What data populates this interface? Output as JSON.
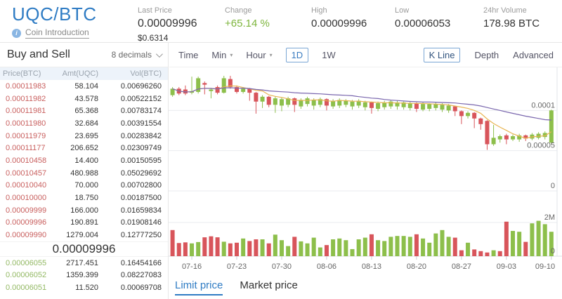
{
  "colors": {
    "accent_blue": "#2f7cc4",
    "change_green": "#7db53c",
    "ask_red": "#c9605f",
    "bid_green": "#93b964",
    "up_green": "#8dbf4b",
    "down_red": "#d8555b",
    "ma_fast_yellow": "#e8b552",
    "ma_slow_purple": "#7a67ae"
  },
  "header": {
    "pair": "UQC/BTC",
    "info_icon_glyph": "i",
    "coin_intro": "Coin Introduction",
    "last_price": {
      "label": "Last Price",
      "value": "0.00009996",
      "usd": "$0.6314"
    },
    "change": {
      "label": "Change",
      "value": "+65.14 %"
    },
    "high": {
      "label": "High",
      "value": "0.00009996"
    },
    "low": {
      "label": "Low",
      "value": "0.00006053"
    },
    "volume": {
      "label": "24hr Volume",
      "value": "178.98 BTC"
    }
  },
  "orderbook": {
    "title": "Buy and Sell",
    "decimals": "8 decimals",
    "columns": [
      "Price(BTC)",
      "Amt(UQC)",
      "Vol(BTC)"
    ],
    "asks": [
      [
        "0.00011983",
        "58.104",
        "0.00696260"
      ],
      [
        "0.00011982",
        "43.578",
        "0.00522152"
      ],
      [
        "0.00011981",
        "65.368",
        "0.00783174"
      ],
      [
        "0.00011980",
        "32.684",
        "0.00391554"
      ],
      [
        "0.00011979",
        "23.695",
        "0.00283842"
      ],
      [
        "0.00011177",
        "206.652",
        "0.02309749"
      ],
      [
        "0.00010458",
        "14.400",
        "0.00150595"
      ],
      [
        "0.00010457",
        "480.988",
        "0.05029692"
      ],
      [
        "0.00010040",
        "70.000",
        "0.00702800"
      ],
      [
        "0.00010000",
        "18.750",
        "0.00187500"
      ],
      [
        "0.00009999",
        "166.000",
        "0.01659834"
      ],
      [
        "0.00009996",
        "190.891",
        "0.01908146"
      ],
      [
        "0.00009990",
        "1279.004",
        "0.12777250"
      ]
    ],
    "current_price": "0.00009996",
    "bids": [
      [
        "0.00006055",
        "2717.451",
        "0.16454166"
      ],
      [
        "0.00006052",
        "1359.399",
        "0.08227083"
      ],
      [
        "0.00006051",
        "11.520",
        "0.00069708"
      ]
    ]
  },
  "toolbar": {
    "time": "Time",
    "min": "Min",
    "hour": "Hour",
    "d1": "1D",
    "w1": "1W",
    "selected_interval": "1D",
    "kline": "K Line",
    "depth": "Depth",
    "advanced": "Advanced",
    "selected_view": "K Line"
  },
  "tabs": {
    "limit": "Limit price",
    "market": "Market price",
    "active": "Limit price"
  },
  "chart_data": {
    "type": "candlestick_with_volume",
    "title": "UQC/BTC daily K-line",
    "price_unit_multiplier": 1e-05,
    "volume_unit": "millions",
    "x_ticks": [
      [
        3,
        "07-16"
      ],
      [
        10,
        "07-23"
      ],
      [
        17,
        "07-30"
      ],
      [
        24,
        "08-06"
      ],
      [
        31,
        "08-13"
      ],
      [
        38,
        "08-20"
      ],
      [
        45,
        "08-27"
      ],
      [
        52,
        "09-03"
      ],
      [
        59,
        "09-10"
      ]
    ],
    "price_axis_ticks": [
      {
        "label": "0.0001",
        "value": 10
      },
      {
        "label": "0.00005",
        "value": 5
      },
      {
        "label": "0",
        "value": 0
      }
    ],
    "volume_axis_ticks": [
      {
        "label": "2M",
        "value": 2
      },
      {
        "label": "0",
        "value": 0
      }
    ],
    "ylim_price_units": [
      0,
      15
    ],
    "ylim_volume_m": [
      0,
      2.8
    ],
    "ma_fast_window": 7,
    "ma_slow_window": 25,
    "legend_position": "none",
    "grid": true,
    "candles_format": [
      "date",
      "open",
      "high",
      "low",
      "close",
      "volume_m"
    ],
    "candles": [
      [
        "07-13",
        11.9,
        12.9,
        11.7,
        12.7,
        1.55
      ],
      [
        "07-14",
        12.7,
        12.9,
        11.9,
        12.1,
        0.78
      ],
      [
        "07-15",
        12.6,
        13.1,
        11.9,
        12.1,
        0.82
      ],
      [
        "07-16",
        12.2,
        14.2,
        12.0,
        12.4,
        0.76
      ],
      [
        "07-17",
        12.3,
        14.2,
        12.1,
        14.0,
        0.84
      ],
      [
        "07-18",
        13.4,
        13.6,
        12.0,
        13.2,
        1.12
      ],
      [
        "07-19",
        12.4,
        12.8,
        11.5,
        12.6,
        1.18
      ],
      [
        "07-20",
        12.9,
        13.1,
        12.0,
        12.2,
        1.12
      ],
      [
        "07-21",
        12.2,
        14.3,
        12.1,
        14.0,
        0.86
      ],
      [
        "07-22",
        13.9,
        14.3,
        12.7,
        12.9,
        0.76
      ],
      [
        "07-23",
        12.9,
        13.1,
        12.1,
        12.3,
        0.8
      ],
      [
        "07-24",
        12.3,
        12.9,
        12.1,
        12.7,
        1.05
      ],
      [
        "07-25",
        12.7,
        12.8,
        11.2,
        12.2,
        0.9
      ],
      [
        "07-26",
        12.2,
        12.3,
        9.6,
        11.1,
        1.0
      ],
      [
        "07-27",
        11.1,
        11.9,
        10.3,
        11.7,
        1.0
      ],
      [
        "07-28",
        11.7,
        11.8,
        10.4,
        10.7,
        0.76
      ],
      [
        "07-29",
        10.7,
        11.7,
        9.7,
        11.5,
        1.28
      ],
      [
        "07-30",
        10.6,
        11.6,
        9.9,
        11.4,
        0.95
      ],
      [
        "07-31",
        10.7,
        11.7,
        10.4,
        11.5,
        0.6
      ],
      [
        "08-01",
        11.5,
        11.6,
        9.8,
        10.7,
        1.15
      ],
      [
        "08-02",
        10.5,
        11.5,
        10.2,
        11.3,
        0.88
      ],
      [
        "08-03",
        10.8,
        11.7,
        10.5,
        11.5,
        0.76
      ],
      [
        "08-04",
        10.6,
        11.5,
        10.1,
        11.3,
        1.1
      ],
      [
        "08-05",
        10.7,
        11.6,
        10.4,
        11.4,
        0.52
      ],
      [
        "08-06",
        11.4,
        11.5,
        10.0,
        10.6,
        0.66
      ],
      [
        "08-07",
        10.5,
        11.4,
        10.2,
        11.2,
        1.0
      ],
      [
        "08-08",
        10.6,
        11.5,
        10.3,
        11.3,
        1.05
      ],
      [
        "08-09",
        10.7,
        11.4,
        10.4,
        11.2,
        0.95
      ],
      [
        "08-10",
        10.5,
        11.3,
        10.1,
        11.1,
        0.42
      ],
      [
        "08-11",
        10.6,
        11.4,
        10.3,
        11.2,
        1.0
      ],
      [
        "08-12",
        10.4,
        11.2,
        10.0,
        11.0,
        1.1
      ],
      [
        "08-13",
        11.0,
        11.1,
        9.6,
        10.3,
        1.3
      ],
      [
        "08-14",
        10.2,
        11.1,
        9.9,
        10.9,
        0.95
      ],
      [
        "08-15",
        10.4,
        11.2,
        10.1,
        11.0,
        0.9
      ],
      [
        "08-16",
        10.5,
        11.3,
        10.2,
        11.1,
        1.15
      ],
      [
        "08-17",
        10.5,
        11.2,
        10.1,
        11.0,
        1.2
      ],
      [
        "08-18",
        10.4,
        11.1,
        10.1,
        11.0,
        1.2
      ],
      [
        "08-19",
        10.3,
        11.1,
        10.0,
        10.9,
        1.15
      ],
      [
        "08-20",
        10.9,
        11.0,
        9.8,
        10.2,
        1.3
      ],
      [
        "08-21",
        10.1,
        11.0,
        9.9,
        10.8,
        1.05
      ],
      [
        "08-22",
        10.2,
        10.9,
        9.9,
        10.8,
        0.8
      ],
      [
        "08-23",
        10.3,
        11.0,
        10.0,
        10.8,
        1.35
      ],
      [
        "08-24",
        10.1,
        10.9,
        9.8,
        10.7,
        1.55
      ],
      [
        "08-25",
        10.0,
        10.8,
        9.7,
        10.6,
        1.15
      ],
      [
        "08-26",
        10.5,
        10.6,
        9.3,
        9.9,
        1.1
      ],
      [
        "08-27",
        9.9,
        10.0,
        8.3,
        9.3,
        0.35
      ],
      [
        "08-28",
        9.3,
        9.9,
        9.0,
        9.7,
        0.8
      ],
      [
        "08-29",
        9.7,
        9.8,
        7.8,
        9.0,
        0.4
      ],
      [
        "08-30",
        9.0,
        9.1,
        7.6,
        8.3,
        0.3
      ],
      [
        "08-31",
        8.7,
        8.8,
        5.1,
        5.8,
        0.22
      ],
      [
        "09-01",
        5.8,
        8.2,
        5.6,
        6.6,
        0.35
      ],
      [
        "09-02",
        6.4,
        7.0,
        6.0,
        6.8,
        0.3
      ],
      [
        "09-03",
        6.9,
        7.1,
        5.8,
        6.4,
        2.05
      ],
      [
        "09-04",
        6.4,
        7.0,
        6.2,
        6.8,
        1.5
      ],
      [
        "09-05",
        6.4,
        7.1,
        6.1,
        6.9,
        1.45
      ],
      [
        "09-06",
        6.9,
        7.0,
        6.2,
        6.5,
        0.85
      ],
      [
        "09-07",
        6.5,
        7.2,
        6.3,
        7.0,
        1.95
      ],
      [
        "09-08",
        6.6,
        7.3,
        6.4,
        7.1,
        2.1
      ],
      [
        "09-09",
        6.7,
        7.4,
        6.4,
        7.2,
        1.9
      ],
      [
        "09-10",
        6.0,
        10.1,
        5.8,
        10.0,
        1.45
      ]
    ],
    "volume_red_override_indices": [
      0,
      6,
      51
    ]
  }
}
